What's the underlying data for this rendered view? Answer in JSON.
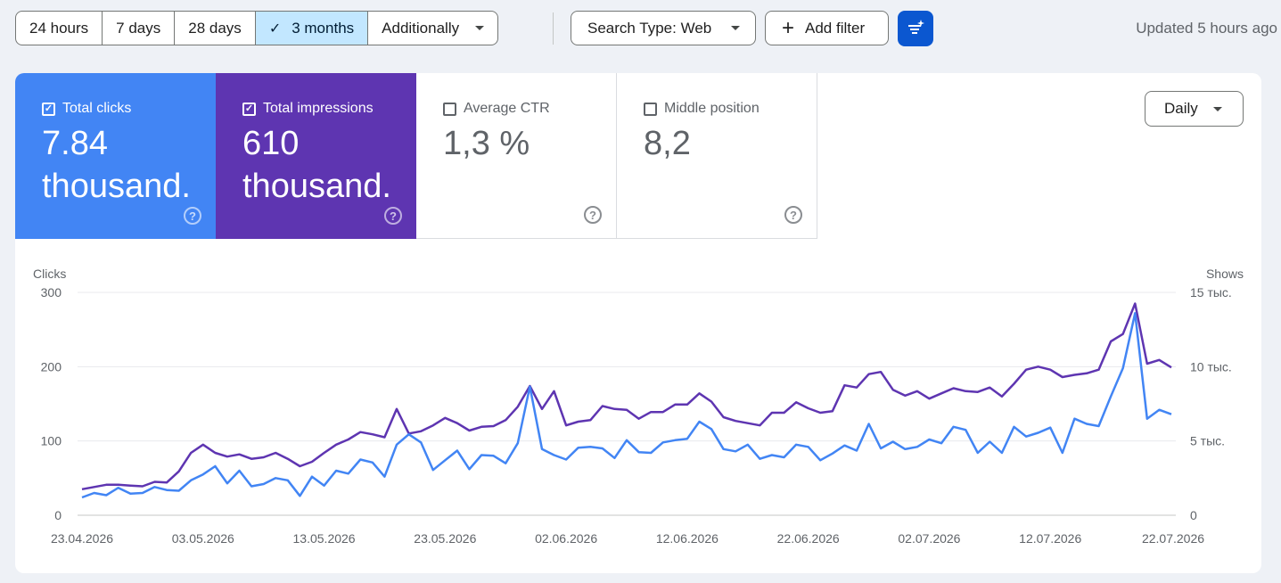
{
  "toolbar": {
    "ranges": [
      "24 hours",
      "7 days",
      "28 days",
      "3 months"
    ],
    "active_range": "3 months",
    "additionally": "Additionally",
    "search_type": "Search Type: Web",
    "add_filter": "Add filter",
    "updated": "Updated 5 hours ago"
  },
  "metrics": [
    {
      "label": "Total clicks",
      "value": "7.84",
      "value2": "thousand.",
      "checked": true
    },
    {
      "label": "Total impressions",
      "value": "610",
      "value2": "thousand.",
      "checked": true
    },
    {
      "label": "Average CTR",
      "value": "1,3 %",
      "value2": "",
      "checked": false
    },
    {
      "label": "Middle position",
      "value": "8,2",
      "value2": "",
      "checked": false
    }
  ],
  "granularity": "Daily",
  "icons": {
    "checkmark": "check-icon",
    "ai": "filter-sparkle-icon",
    "help": "help-icon",
    "add": "plus-icon"
  },
  "colors": {
    "clicks": "#4285f4",
    "impressions": "#5e35b1",
    "active_seg": "#c2e7ff",
    "accent": "#0b57d0"
  },
  "chart_data": {
    "type": "line",
    "ylabel_left": "Clicks",
    "ylabel_right": "Shows",
    "yticks_left": [
      "300",
      "200",
      "100",
      "0"
    ],
    "yticks_right": [
      "15 тыс.",
      "10 тыс.",
      "5 тыс.",
      "0"
    ],
    "ylim_left": [
      0,
      300
    ],
    "ylim_right": [
      0,
      15000
    ],
    "grid": true,
    "xticks": [
      "23.04.2026",
      "03.05.2026",
      "13.05.2026",
      "23.05.2026",
      "02.06.2026",
      "12.06.2026",
      "22.06.2026",
      "02.07.2026",
      "12.07.2026",
      "22.07.2026"
    ],
    "series": [
      {
        "name": "Clicks",
        "axis": "left",
        "color": "#4285f4",
        "values": [
          24,
          30,
          27,
          37,
          29,
          30,
          38,
          34,
          33,
          47,
          55,
          66,
          43,
          60,
          39,
          42,
          50,
          47,
          26,
          52,
          40,
          60,
          56,
          75,
          71,
          52,
          95,
          109,
          98,
          61,
          74,
          87,
          62,
          81,
          80,
          70,
          97,
          173,
          89,
          81,
          75,
          91,
          92,
          90,
          77,
          101,
          85,
          84,
          98,
          101,
          103,
          126,
          116,
          89,
          86,
          95,
          76,
          81,
          78,
          95,
          92,
          74,
          83,
          94,
          87,
          123,
          90,
          99,
          89,
          92,
          102,
          97,
          119,
          115,
          84,
          99,
          84,
          119,
          106,
          111,
          118,
          84,
          130,
          123,
          120,
          160,
          198,
          272,
          130,
          142,
          136
        ]
      },
      {
        "name": "Shows",
        "axis": "right",
        "color": "#5e35b1",
        "values": [
          1750,
          1900,
          2050,
          2050,
          2000,
          1950,
          2250,
          2200,
          2950,
          4200,
          4750,
          4200,
          3950,
          4100,
          3800,
          3900,
          4200,
          3800,
          3300,
          3600,
          4200,
          4750,
          5100,
          5600,
          5450,
          5250,
          7150,
          5500,
          5650,
          6050,
          6550,
          6200,
          5700,
          5950,
          6000,
          6400,
          7300,
          8700,
          7150,
          8350,
          6050,
          6300,
          6400,
          7350,
          7150,
          7100,
          6500,
          6950,
          6950,
          7450,
          7450,
          8200,
          7650,
          6600,
          6350,
          6200,
          6050,
          6900,
          6900,
          7600,
          7200,
          6900,
          7000,
          8750,
          8600,
          9500,
          9650,
          8450,
          8050,
          8350,
          7850,
          8200,
          8550,
          8350,
          8300,
          8600,
          8000,
          8850,
          9800,
          10000,
          9800,
          9300,
          9450,
          9550,
          9800,
          11700,
          12200,
          14250,
          10200,
          10450,
          9950
        ]
      }
    ]
  }
}
